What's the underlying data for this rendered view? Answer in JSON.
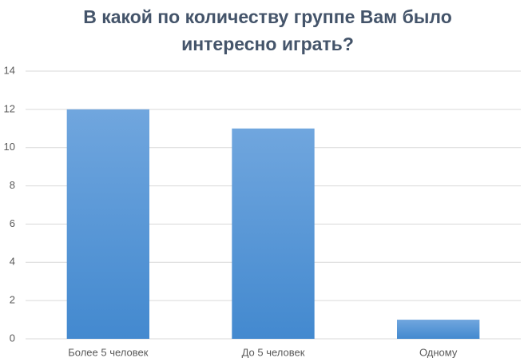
{
  "chart_data": {
    "type": "bar",
    "title": "В какой по количеству группе Вам было интересно играть?",
    "categories": [
      "Более 5 человек",
      "До 5 человек",
      "Одному"
    ],
    "values": [
      12,
      11,
      1
    ],
    "color": "#5b9bd5",
    "ylim": [
      0,
      14
    ],
    "yticks": [
      0,
      2,
      4,
      6,
      8,
      10,
      12,
      14
    ],
    "grid": true
  }
}
